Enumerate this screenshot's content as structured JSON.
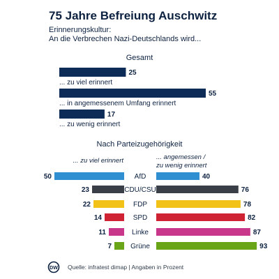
{
  "title": "75 Jahre Befreiung Auschwitz",
  "subtitle_line1": "Erinnerungskultur:",
  "subtitle_line2": "An die Verbrechen Nazi-Deutschlands wird...",
  "source": "Quelle: infratest dimap | Angaben in Prozent",
  "logo_text": "DW",
  "colors": {
    "navy": "#0c2b57",
    "text": "#0c2140",
    "muted": "#2f3b4a",
    "afd": "#2f8fd0",
    "cdu": "#3a3f47",
    "fdp": "#f2c218",
    "spd": "#cf2233",
    "linke": "#c8378a",
    "gruene": "#6aa518"
  },
  "chart_data": [
    {
      "type": "bar",
      "title": "Gesamt",
      "categories": [
        "... zu viel erinnert",
        "... in angemessenem Umfang erinnert",
        "... zu wenig erinnert"
      ],
      "values": [
        25,
        55,
        17
      ],
      "unit": "Prozent"
    },
    {
      "type": "bar",
      "title": "Nach Parteizugehörigkeit",
      "categories": [
        "AfD",
        "CDU/CSU",
        "FDP",
        "SPD",
        "Linke",
        "Grüne"
      ],
      "series": [
        {
          "name": "... zu viel erinnert",
          "values": [
            50,
            23,
            22,
            14,
            11,
            7
          ]
        },
        {
          "name": "... angemessen / zu wenig erinnert",
          "name_line1": "... angemessen /",
          "name_line2": "zu wenig erinnert",
          "values": [
            40,
            76,
            78,
            82,
            87,
            93
          ]
        }
      ],
      "unit": "Prozent"
    }
  ]
}
